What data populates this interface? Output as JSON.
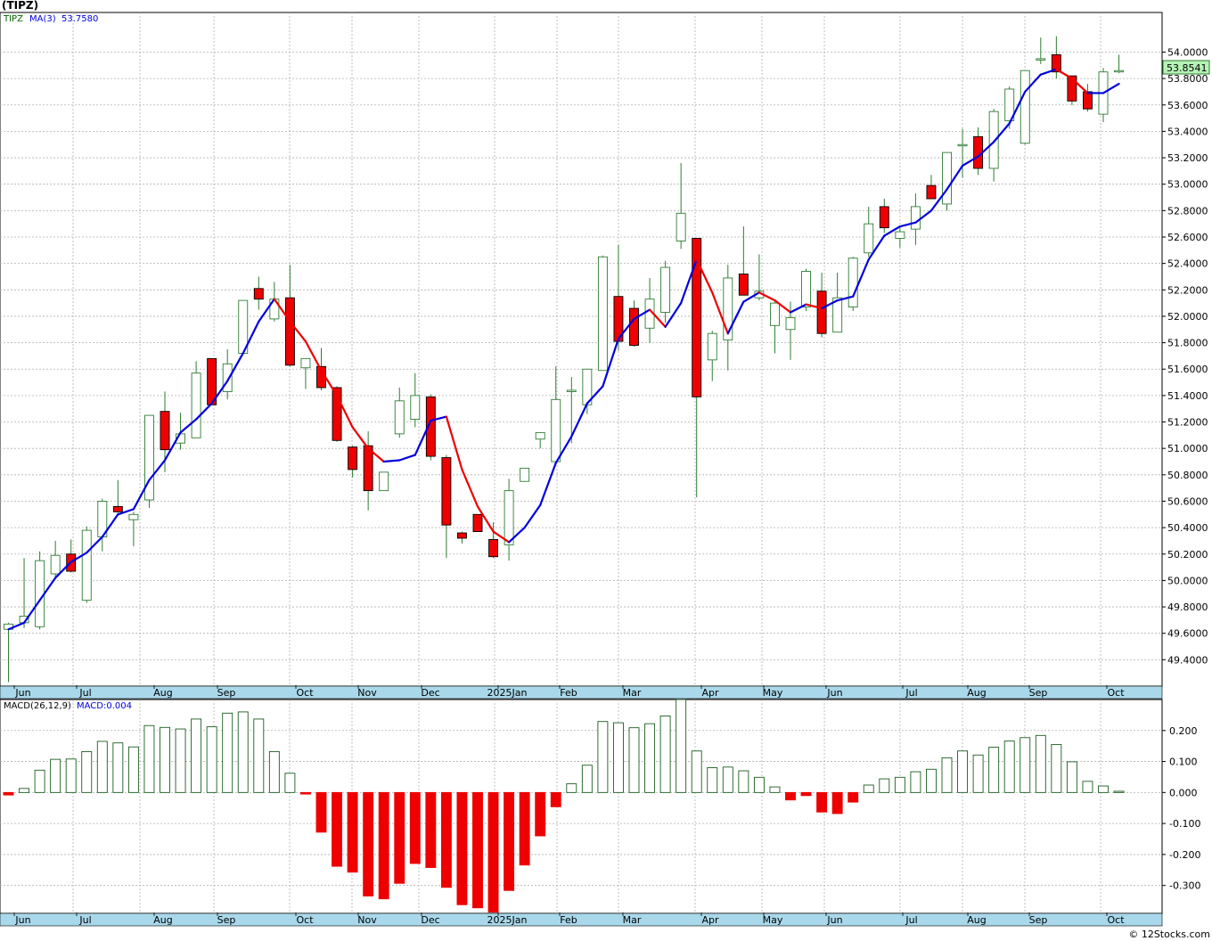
{
  "title": "(TIPZ)",
  "legend": {
    "symbol": "TIPZ",
    "ma_label": "MA(3)",
    "ma_value": "53.7580"
  },
  "macd_legend": {
    "label": "MACD(26,12,9)",
    "value": "MACD:0.004"
  },
  "last_price": "53.8541",
  "footer": "© 12Stocks.com",
  "colors": {
    "up": "#2e7d32",
    "down": "#ee0000",
    "ma_up": "#0000dd",
    "ma_down": "#ee0000",
    "axis_bg": "#a8d8ea",
    "label_box": "#b6f2b6"
  },
  "chart_data": [
    {
      "type": "candlestick",
      "ylim": [
        49.2,
        54.3
      ],
      "y_ticks": [
        "49.4000",
        "49.6000",
        "49.8000",
        "50.0000",
        "50.2000",
        "50.4000",
        "50.6000",
        "50.8000",
        "51.0000",
        "51.2000",
        "51.4000",
        "51.6000",
        "51.8000",
        "52.0000",
        "52.2000",
        "52.4000",
        "52.6000",
        "52.8000",
        "53.0000",
        "53.2000",
        "53.4000",
        "53.6000",
        "53.8000",
        "54.0000"
      ],
      "x_labels": [
        "Jun",
        "Jul",
        "Aug",
        "Sep",
        "Oct",
        "Nov",
        "Dec",
        "2025Jan",
        "Feb",
        "Mar",
        "Apr",
        "May",
        "Jun",
        "Jul",
        "Aug",
        "Sep",
        "Oct"
      ],
      "candles": [
        {
          "o": 49.63,
          "h": 49.68,
          "l": 49.23,
          "c": 49.67
        },
        {
          "o": 49.68,
          "h": 50.17,
          "l": 49.64,
          "c": 49.73
        },
        {
          "o": 49.65,
          "h": 50.22,
          "l": 49.63,
          "c": 50.15
        },
        {
          "o": 50.05,
          "h": 50.3,
          "l": 50.03,
          "c": 50.19
        },
        {
          "o": 50.2,
          "h": 50.31,
          "l": 50.06,
          "c": 50.07
        },
        {
          "o": 49.85,
          "h": 50.41,
          "l": 49.83,
          "c": 50.38
        },
        {
          "o": 50.33,
          "h": 50.62,
          "l": 50.22,
          "c": 50.6
        },
        {
          "o": 50.56,
          "h": 50.76,
          "l": 50.51,
          "c": 50.52
        },
        {
          "o": 50.46,
          "h": 50.52,
          "l": 50.26,
          "c": 50.5
        },
        {
          "o": 50.61,
          "h": 51.25,
          "l": 50.55,
          "c": 51.25
        },
        {
          "o": 51.28,
          "h": 51.43,
          "l": 50.82,
          "c": 50.99
        },
        {
          "o": 51.04,
          "h": 51.27,
          "l": 50.99,
          "c": 51.11
        },
        {
          "o": 51.08,
          "h": 51.66,
          "l": 51.08,
          "c": 51.57
        },
        {
          "o": 51.68,
          "h": 51.68,
          "l": 51.33,
          "c": 51.33
        },
        {
          "o": 51.43,
          "h": 51.75,
          "l": 51.37,
          "c": 51.64
        },
        {
          "o": 51.72,
          "h": 52.12,
          "l": 51.72,
          "c": 52.12
        },
        {
          "o": 52.21,
          "h": 52.3,
          "l": 52.05,
          "c": 52.13
        },
        {
          "o": 51.98,
          "h": 52.26,
          "l": 51.96,
          "c": 52.13
        },
        {
          "o": 52.14,
          "h": 52.39,
          "l": 51.62,
          "c": 51.63
        },
        {
          "o": 51.61,
          "h": 51.68,
          "l": 51.45,
          "c": 51.68
        },
        {
          "o": 51.62,
          "h": 51.76,
          "l": 51.44,
          "c": 51.46
        },
        {
          "o": 51.46,
          "h": 51.47,
          "l": 51.05,
          "c": 51.06
        },
        {
          "o": 51.01,
          "h": 51.02,
          "l": 50.78,
          "c": 50.84
        },
        {
          "o": 51.02,
          "h": 51.13,
          "l": 50.53,
          "c": 50.68
        },
        {
          "o": 50.68,
          "h": 50.82,
          "l": 50.68,
          "c": 50.82
        },
        {
          "o": 51.11,
          "h": 51.46,
          "l": 51.08,
          "c": 51.36
        },
        {
          "o": 51.22,
          "h": 51.57,
          "l": 51.16,
          "c": 51.4
        },
        {
          "o": 51.39,
          "h": 51.41,
          "l": 50.91,
          "c": 50.94
        },
        {
          "o": 50.93,
          "h": 50.95,
          "l": 50.17,
          "c": 50.42
        },
        {
          "o": 50.36,
          "h": 50.37,
          "l": 50.28,
          "c": 50.32
        },
        {
          "o": 50.5,
          "h": 50.5,
          "l": 50.37,
          "c": 50.37
        },
        {
          "o": 50.31,
          "h": 50.44,
          "l": 50.17,
          "c": 50.18
        },
        {
          "o": 50.27,
          "h": 50.77,
          "l": 50.15,
          "c": 50.68
        },
        {
          "o": 50.75,
          "h": 50.85,
          "l": 50.75,
          "c": 50.85
        },
        {
          "o": 51.07,
          "h": 51.12,
          "l": 51.0,
          "c": 51.12
        },
        {
          "o": 50.9,
          "h": 51.62,
          "l": 50.9,
          "c": 51.37
        },
        {
          "o": 51.44,
          "h": 51.54,
          "l": 51.04,
          "c": 51.44
        },
        {
          "o": 51.33,
          "h": 51.6,
          "l": 51.26,
          "c": 51.6
        },
        {
          "o": 51.59,
          "h": 52.46,
          "l": 51.59,
          "c": 52.45
        },
        {
          "o": 52.15,
          "h": 52.54,
          "l": 51.74,
          "c": 51.81
        },
        {
          "o": 52.06,
          "h": 52.12,
          "l": 51.77,
          "c": 51.78
        },
        {
          "o": 51.91,
          "h": 52.29,
          "l": 51.8,
          "c": 52.13
        },
        {
          "o": 52.03,
          "h": 52.42,
          "l": 51.95,
          "c": 52.37
        },
        {
          "o": 52.57,
          "h": 53.16,
          "l": 52.51,
          "c": 52.78
        },
        {
          "o": 52.59,
          "h": 52.59,
          "l": 50.63,
          "c": 51.39
        },
        {
          "o": 51.67,
          "h": 51.89,
          "l": 51.51,
          "c": 51.87
        },
        {
          "o": 51.82,
          "h": 52.39,
          "l": 51.59,
          "c": 52.29
        },
        {
          "o": 52.32,
          "h": 52.68,
          "l": 52.16,
          "c": 52.16
        },
        {
          "o": 52.14,
          "h": 52.47,
          "l": 52.12,
          "c": 52.19
        },
        {
          "o": 51.93,
          "h": 52.11,
          "l": 51.72,
          "c": 52.1
        },
        {
          "o": 51.9,
          "h": 52.11,
          "l": 51.67,
          "c": 51.99
        },
        {
          "o": 52.07,
          "h": 52.36,
          "l": 52.04,
          "c": 52.34
        },
        {
          "o": 52.19,
          "h": 52.33,
          "l": 51.84,
          "c": 51.87
        },
        {
          "o": 51.88,
          "h": 52.33,
          "l": 51.88,
          "c": 52.14
        },
        {
          "o": 52.07,
          "h": 52.45,
          "l": 52.04,
          "c": 52.44
        },
        {
          "o": 52.48,
          "h": 52.83,
          "l": 52.45,
          "c": 52.7
        },
        {
          "o": 52.83,
          "h": 52.89,
          "l": 52.63,
          "c": 52.67
        },
        {
          "o": 52.59,
          "h": 52.67,
          "l": 52.52,
          "c": 52.64
        },
        {
          "o": 52.66,
          "h": 52.93,
          "l": 52.54,
          "c": 52.83
        },
        {
          "o": 52.99,
          "h": 53.07,
          "l": 52.89,
          "c": 52.89
        },
        {
          "o": 52.85,
          "h": 53.24,
          "l": 52.8,
          "c": 53.24
        },
        {
          "o": 53.3,
          "h": 53.42,
          "l": 53.05,
          "c": 53.3
        },
        {
          "o": 53.36,
          "h": 53.43,
          "l": 53.07,
          "c": 53.12
        },
        {
          "o": 53.12,
          "h": 53.57,
          "l": 53.02,
          "c": 53.55
        },
        {
          "o": 53.48,
          "h": 53.74,
          "l": 53.42,
          "c": 53.72
        },
        {
          "o": 53.31,
          "h": 53.86,
          "l": 53.3,
          "c": 53.86
        },
        {
          "o": 53.94,
          "h": 54.11,
          "l": 53.91,
          "c": 53.95
        },
        {
          "o": 53.98,
          "h": 54.12,
          "l": 53.8,
          "c": 53.85
        },
        {
          "o": 53.82,
          "h": 53.82,
          "l": 53.6,
          "c": 53.63
        },
        {
          "o": 53.7,
          "h": 53.76,
          "l": 53.55,
          "c": 53.57
        },
        {
          "o": 53.53,
          "h": 53.88,
          "l": 53.47,
          "c": 53.85
        },
        {
          "o": 53.86,
          "h": 53.98,
          "l": 53.84,
          "c": 53.86
        }
      ],
      "ma": [
        49.63,
        49.68,
        49.85,
        50.02,
        50.14,
        50.21,
        50.33,
        50.5,
        50.54,
        50.76,
        50.91,
        51.12,
        51.22,
        51.34,
        51.51,
        51.72,
        51.96,
        52.13,
        51.96,
        51.81,
        51.59,
        51.4,
        51.16,
        51.0,
        50.9,
        50.91,
        50.95,
        51.21,
        51.24,
        50.84,
        50.56,
        50.37,
        50.29,
        50.4,
        50.57,
        50.89,
        51.09,
        51.34,
        51.47,
        51.83,
        51.98,
        52.05,
        51.92,
        52.1,
        52.43,
        52.18,
        51.87,
        52.11,
        52.18,
        52.12,
        52.03,
        52.09,
        52.06,
        52.12,
        52.15,
        52.43,
        52.61,
        52.68,
        52.71,
        52.8,
        52.96,
        53.14,
        53.21,
        53.32,
        53.46,
        53.7,
        53.83,
        53.87,
        53.8,
        53.69,
        53.69,
        53.76
      ]
    },
    {
      "type": "bar",
      "name": "MACD(26,12,9)",
      "ylim": [
        -0.39,
        0.3
      ],
      "y_ticks": [
        "0.200",
        "0.100",
        "0.000",
        "-0.100",
        "-0.200",
        "-0.300"
      ],
      "y_tick_values": [
        0.2,
        0.1,
        0.0,
        -0.1,
        -0.2,
        -0.3
      ],
      "x_labels": [
        "Jun",
        "Jul",
        "Aug",
        "Sep",
        "Oct",
        "Nov",
        "Dec",
        "2025Jan",
        "Feb",
        "Mar",
        "Apr",
        "May",
        "Jun",
        "Jul",
        "Aug",
        "Sep",
        "Oct"
      ],
      "values": [
        -0.008,
        0.013,
        0.072,
        0.107,
        0.108,
        0.132,
        0.165,
        0.16,
        0.147,
        0.216,
        0.21,
        0.205,
        0.237,
        0.212,
        0.256,
        0.26,
        0.237,
        0.132,
        0.062,
        -0.005,
        -0.128,
        -0.238,
        -0.257,
        -0.334,
        -0.343,
        -0.293,
        -0.229,
        -0.242,
        -0.306,
        -0.362,
        -0.372,
        -0.386,
        -0.316,
        -0.234,
        -0.14,
        -0.046,
        0.028,
        0.088,
        0.229,
        0.225,
        0.209,
        0.222,
        0.247,
        0.3,
        0.134,
        0.08,
        0.082,
        0.07,
        0.049,
        0.018,
        -0.024,
        -0.01,
        -0.063,
        -0.068,
        -0.031,
        0.024,
        0.044,
        0.049,
        0.067,
        0.075,
        0.112,
        0.134,
        0.121,
        0.146,
        0.166,
        0.177,
        0.184,
        0.155,
        0.099,
        0.036,
        0.021,
        0.004
      ]
    }
  ]
}
